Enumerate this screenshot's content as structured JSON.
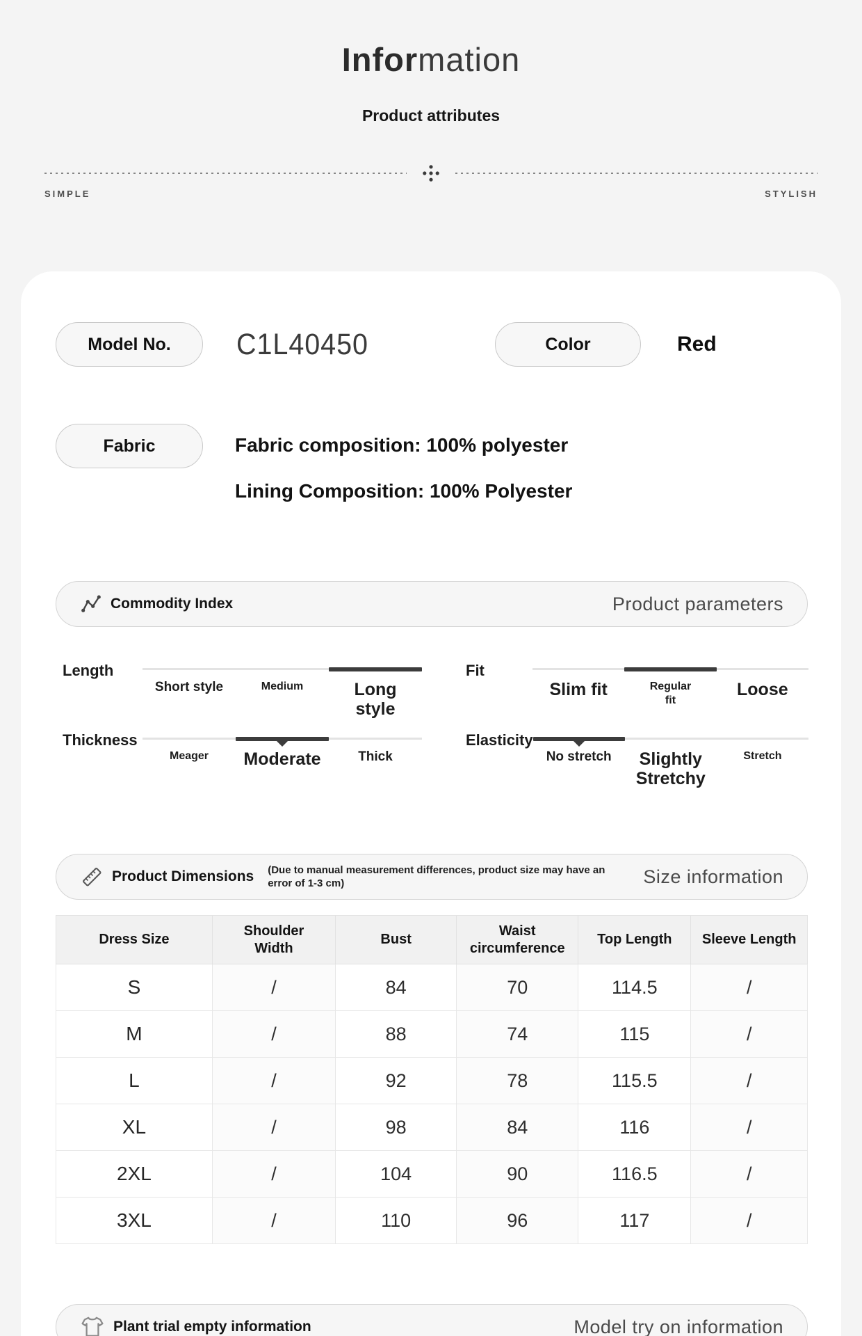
{
  "header": {
    "title_bold": "Infor",
    "title_light": "mation",
    "subtitle": "Product attributes",
    "tag_left": "SIMPLE",
    "tag_right": "STYLISH"
  },
  "attributes": {
    "model": {
      "label": "Model No.",
      "value": "C1L40450"
    },
    "color": {
      "label": "Color",
      "value": "Red"
    },
    "fabric": {
      "label": "Fabric",
      "line1": "Fabric composition: 100% polyester",
      "line2": "Lining Composition: 100% Polyester"
    }
  },
  "commodity": {
    "title": "Commodity Index",
    "right_label": "Product parameters",
    "scales": [
      {
        "name": "Length",
        "selected": 2,
        "marker": false,
        "options": [
          {
            "label": "Short style",
            "size": "md"
          },
          {
            "label": "Medium",
            "size": "sm"
          },
          {
            "label": "Long style",
            "size": "lg"
          }
        ]
      },
      {
        "name": "Fit",
        "selected": 1,
        "marker": false,
        "options": [
          {
            "label": "Slim fit",
            "size": "lg"
          },
          {
            "label": "Regular fit",
            "size": "sm",
            "wrap": true
          },
          {
            "label": "Loose",
            "size": "lg"
          }
        ]
      },
      {
        "name": "Thickness",
        "selected": 1,
        "marker": true,
        "options": [
          {
            "label": "Meager",
            "size": "sm"
          },
          {
            "label": "Moderate",
            "size": "lg"
          },
          {
            "label": "Thick",
            "size": "md"
          }
        ]
      },
      {
        "name": "Elasticity",
        "selected": 0,
        "marker": true,
        "options": [
          {
            "label": "No stretch",
            "size": "md"
          },
          {
            "label": "Slightly Stretchy",
            "size": "lg"
          },
          {
            "label": "Stretch",
            "size": "sm"
          }
        ]
      }
    ]
  },
  "dimensions": {
    "title": "Product Dimensions",
    "note": "(Due to manual measurement differences, product size may have an error of 1-3 cm)",
    "right_label": "Size information",
    "table": {
      "headers": [
        "Dress Size",
        "Shoulder Width",
        "Bust",
        "Waist circumference",
        "Top Length",
        "Sleeve Length"
      ],
      "rows": [
        [
          "S",
          "/",
          "84",
          "70",
          "114.5",
          "/"
        ],
        [
          "M",
          "/",
          "88",
          "74",
          "115",
          "/"
        ],
        [
          "L",
          "/",
          "92",
          "78",
          "115.5",
          "/"
        ],
        [
          "XL",
          "/",
          "98",
          "84",
          "116",
          "/"
        ],
        [
          "2XL",
          "/",
          "104",
          "90",
          "116.5",
          "/"
        ],
        [
          "3XL",
          "/",
          "110",
          "96",
          "117",
          "/"
        ]
      ]
    }
  },
  "footer": {
    "title": "Plant trial empty information",
    "right_label": "Model try on information"
  }
}
